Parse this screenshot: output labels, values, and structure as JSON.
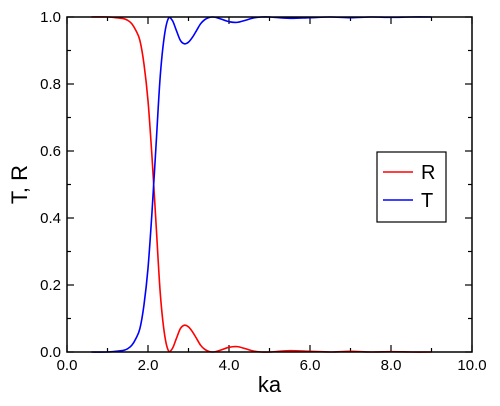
{
  "chart_data": {
    "type": "line",
    "title": "",
    "xlabel": "ka",
    "ylabel": "T, R",
    "xlim": [
      0,
      10
    ],
    "ylim": [
      0,
      1
    ],
    "grid": false,
    "legend_position": "right",
    "x_ticks": [
      0,
      2,
      4,
      6,
      8,
      10
    ],
    "x_tick_labels": [
      "0.0",
      "2.0",
      "4.0",
      "6.0",
      "8.0",
      "10.0"
    ],
    "y_ticks": [
      0,
      0.2,
      0.4,
      0.6,
      0.8,
      1.0
    ],
    "y_tick_labels": [
      "0.0",
      "0.2",
      "0.4",
      "0.6",
      "0.8",
      "1.0"
    ],
    "x": [
      0.6,
      1.0,
      1.2,
      1.4,
      1.5,
      1.6,
      1.7,
      1.8,
      1.9,
      2.0,
      2.1,
      2.2,
      2.3,
      2.4,
      2.5,
      2.6,
      2.7,
      2.8,
      2.9,
      3.0,
      3.1,
      3.2,
      3.3,
      3.4,
      3.5,
      3.6,
      3.7,
      3.8,
      4.0,
      4.2,
      4.4,
      4.6,
      4.8,
      5.0,
      5.5,
      6.0,
      6.5,
      7.0,
      7.5,
      8.0,
      8.5,
      9.0
    ],
    "series": [
      {
        "name": "R",
        "color": "#ff0000",
        "values": [
          1.0,
          1.0,
          0.998,
          0.995,
          0.99,
          0.98,
          0.96,
          0.93,
          0.86,
          0.75,
          0.58,
          0.38,
          0.18,
          0.06,
          0.005,
          0.01,
          0.04,
          0.07,
          0.08,
          0.075,
          0.06,
          0.04,
          0.02,
          0.008,
          0.002,
          0.0,
          0.002,
          0.006,
          0.014,
          0.016,
          0.01,
          0.003,
          0.0,
          0.0,
          0.004,
          0.002,
          0.0,
          0.002,
          0.0,
          0.001,
          0.0,
          0.0
        ]
      },
      {
        "name": "T",
        "color": "#0000ff",
        "values": [
          0.0,
          0.0,
          0.002,
          0.005,
          0.01,
          0.02,
          0.04,
          0.07,
          0.14,
          0.25,
          0.42,
          0.62,
          0.82,
          0.94,
          0.995,
          0.99,
          0.96,
          0.93,
          0.92,
          0.925,
          0.94,
          0.96,
          0.98,
          0.992,
          0.998,
          1.0,
          0.998,
          0.994,
          0.986,
          0.984,
          0.99,
          0.997,
          1.0,
          1.0,
          0.996,
          0.998,
          1.0,
          0.998,
          1.0,
          0.999,
          1.0,
          1.0
        ]
      }
    ]
  }
}
